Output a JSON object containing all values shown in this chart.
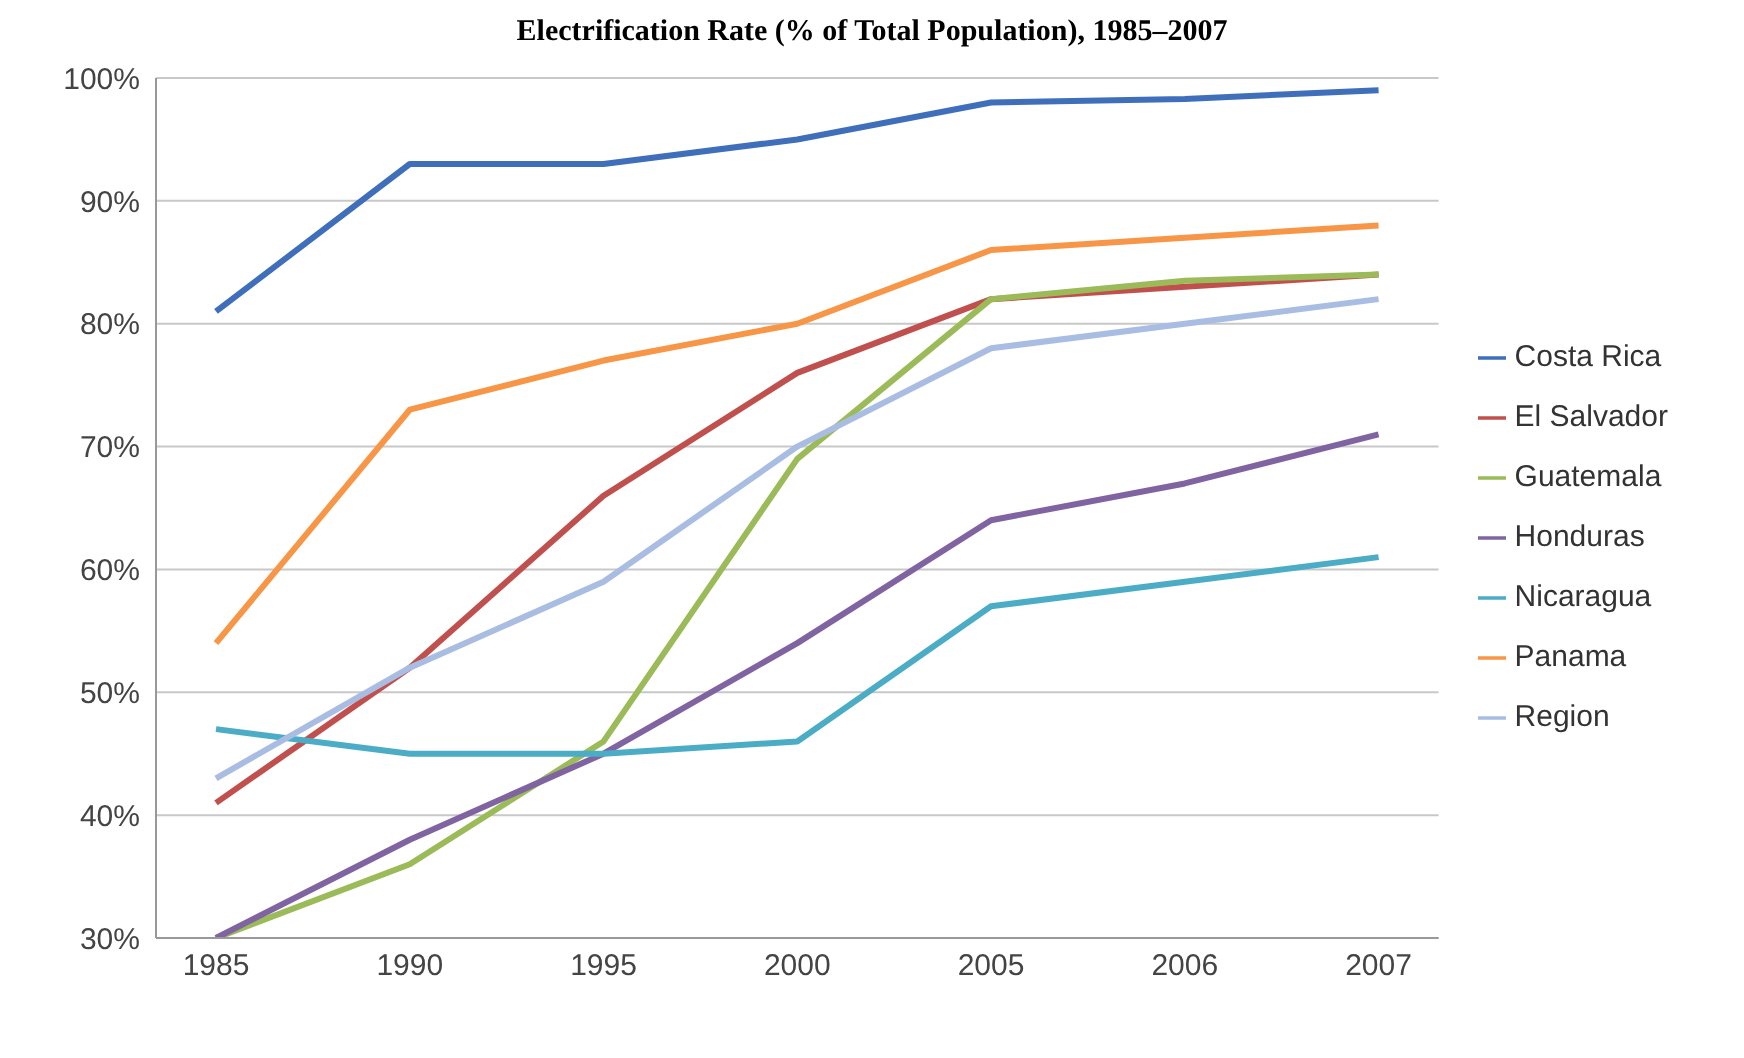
{
  "chart_data": {
    "type": "line",
    "title": "Electrification Rate (% of Total Population), 1985–2007",
    "categories": [
      "1985",
      "1990",
      "1995",
      "2000",
      "2005",
      "2006",
      "2007"
    ],
    "series": [
      {
        "name": "Costa Rica",
        "color": "#3f6fba",
        "values": [
          81,
          93,
          93,
          95,
          98,
          98.3,
          99
        ]
      },
      {
        "name": "El Salvador",
        "color": "#c0504d",
        "values": [
          41,
          52,
          66,
          76,
          82,
          83,
          84
        ]
      },
      {
        "name": "Guatemala",
        "color": "#9bbb59",
        "values": [
          30,
          36,
          46,
          69,
          82,
          83.5,
          84
        ]
      },
      {
        "name": "Honduras",
        "color": "#8064a2",
        "values": [
          30,
          38,
          45,
          54,
          64,
          67,
          71
        ]
      },
      {
        "name": "Nicaragua",
        "color": "#4bacc6",
        "values": [
          47,
          45,
          45,
          46,
          57,
          59,
          61
        ]
      },
      {
        "name": "Panama",
        "color": "#f79646",
        "values": [
          54,
          73,
          77,
          80,
          86,
          87,
          88
        ]
      },
      {
        "name": "Region",
        "color": "#a9bde3",
        "values": [
          43,
          52,
          59,
          70,
          78,
          80,
          82
        ]
      }
    ],
    "ylim": [
      30,
      100
    ],
    "yticks": [
      {
        "value": 30,
        "label": "30%"
      },
      {
        "value": 40,
        "label": "40%"
      },
      {
        "value": 50,
        "label": "50%"
      },
      {
        "value": 60,
        "label": "60%"
      },
      {
        "value": 70,
        "label": "70%"
      },
      {
        "value": 80,
        "label": "80%"
      },
      {
        "value": 90,
        "label": "90%"
      },
      {
        "value": 100,
        "label": "100%"
      }
    ],
    "grid": "y",
    "legend": "right",
    "marker": "none",
    "line_style": "solid"
  }
}
